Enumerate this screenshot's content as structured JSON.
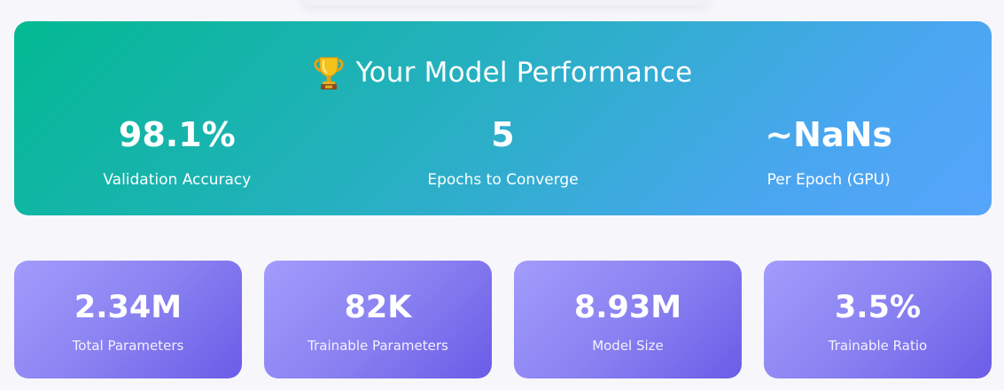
{
  "hero": {
    "title": "Your Model Performance",
    "icon": "trophy-icon",
    "stats": [
      {
        "value": "98.1%",
        "label": "Validation Accuracy"
      },
      {
        "value": "5",
        "label": "Epochs to Converge"
      },
      {
        "value": "~NaNs",
        "label": "Per Epoch (GPU)"
      }
    ]
  },
  "cards": [
    {
      "value": "2.34M",
      "label": "Total Parameters"
    },
    {
      "value": "82K",
      "label": "Trainable Parameters"
    },
    {
      "value": "8.93M",
      "label": "Model Size"
    },
    {
      "value": "3.5%",
      "label": "Trainable Ratio"
    }
  ],
  "colors": {
    "hero_gradient_start": "#02b991",
    "hero_gradient_end": "#56a5fb",
    "card_gradient_start": "#a29cfc",
    "card_gradient_end": "#6b5ce7",
    "background": "#f7f6fb"
  }
}
